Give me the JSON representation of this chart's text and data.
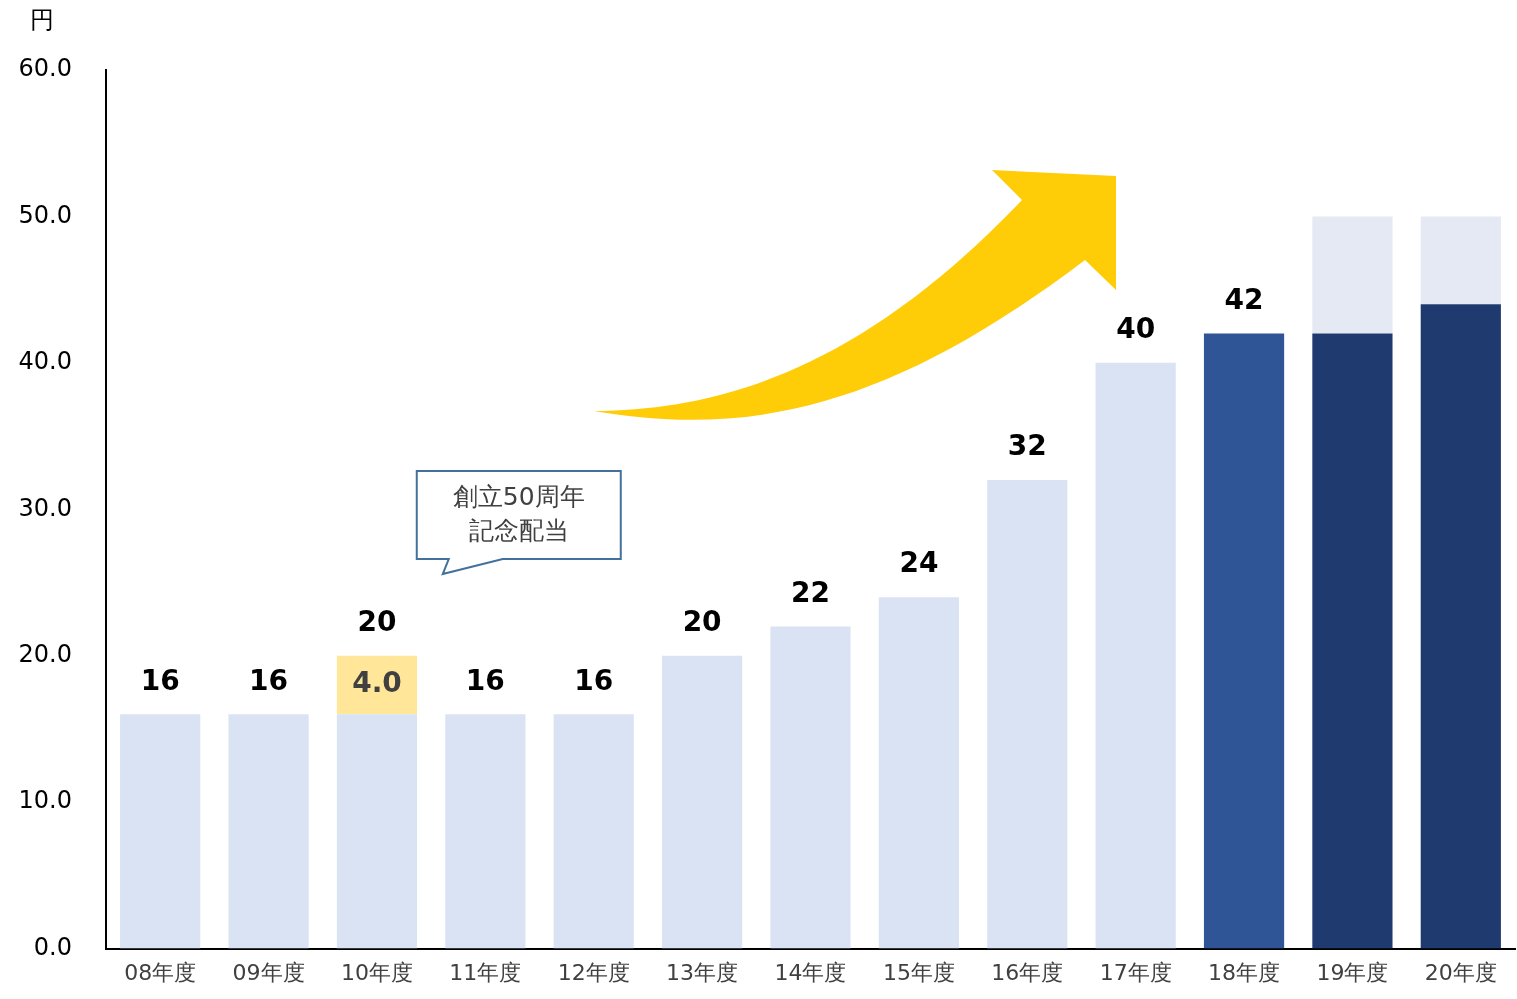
{
  "chart_data": {
    "type": "bar",
    "stacked": true,
    "ylabel": "円",
    "categories": [
      "08年度",
      "09年度",
      "10年度",
      "11年度",
      "12年度",
      "13年度",
      "14年度",
      "15年度",
      "16年度",
      "17年度",
      "18年度",
      "19年度",
      "20年度"
    ],
    "series": [
      {
        "colors": [
          "#dae3f3",
          "#dae3f3",
          "#dae3f3",
          "#dae3f3",
          "#dae3f3",
          "#dae3f3",
          "#dae3f3",
          "#dae3f3",
          "#dae3f3",
          "#dae3f3",
          "#2f5597",
          "#1f3a6e",
          "#1f3a6e"
        ],
        "values": [
          16,
          16,
          16,
          16,
          16,
          20,
          22,
          24,
          32,
          40,
          42,
          42,
          44
        ],
        "value_labels": [
          "16",
          "16",
          null,
          "16",
          "16",
          "20",
          "22",
          "24",
          "32",
          "40",
          "42",
          null,
          null
        ]
      },
      {
        "color": "#ffe699",
        "values": [
          null,
          null,
          4,
          null,
          null,
          null,
          null,
          null,
          null,
          null,
          null,
          null,
          null
        ],
        "value_labels": [
          null,
          null,
          "4.0",
          null,
          null,
          null,
          null,
          null,
          null,
          null,
          null,
          null,
          null
        ]
      },
      {
        "color": "#e4e9f3",
        "values": [
          null,
          null,
          null,
          null,
          null,
          null,
          null,
          null,
          null,
          null,
          null,
          8,
          6
        ]
      }
    ],
    "totals": [
      null,
      null,
      "20",
      null,
      null,
      null,
      null,
      null,
      null,
      null,
      null,
      null,
      null
    ],
    "ylim": [
      0,
      60
    ],
    "yticks": [
      {
        "value": 0,
        "label": "0.0"
      },
      {
        "value": 10,
        "label": "10.0"
      },
      {
        "value": 20,
        "label": "20.0"
      },
      {
        "value": 30,
        "label": "30.0"
      },
      {
        "value": 40,
        "label": "40.0"
      },
      {
        "value": 50,
        "label": "50.0"
      },
      {
        "value": 60,
        "label": "60.0"
      }
    ],
    "grid": false,
    "legend": false,
    "annotations": [
      "創立50周年記念配当"
    ]
  }
}
